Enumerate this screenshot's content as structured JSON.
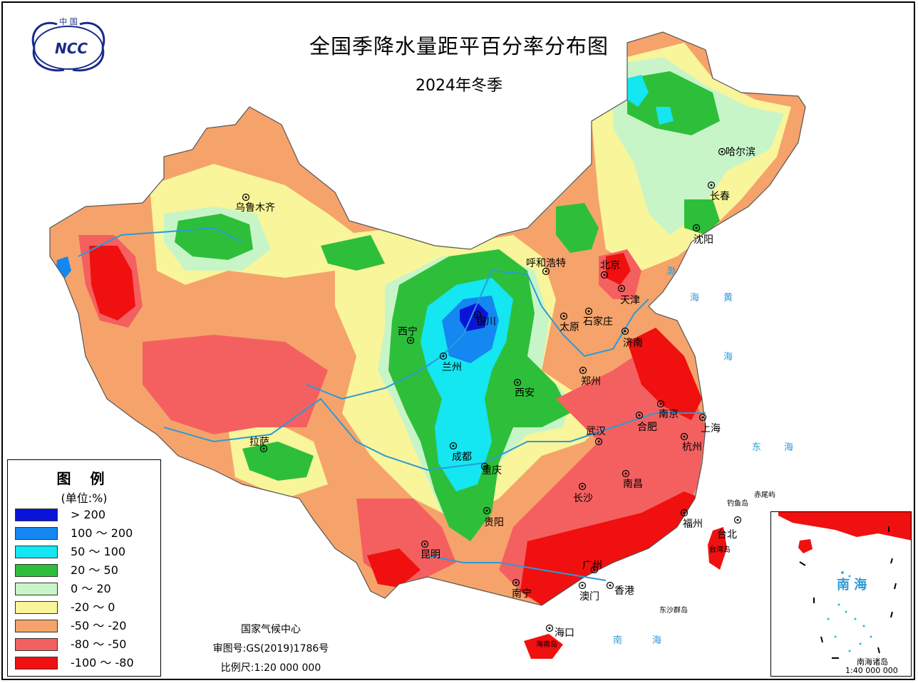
{
  "header": {
    "logo_text": "中国 NCC",
    "title": "全国季降水量距平百分率分布图",
    "subtitle": "2024年冬季"
  },
  "legend": {
    "title": "图 例",
    "unit": "(单位:%)",
    "items": [
      {
        "label": "> 200",
        "color": "#0a14d8"
      },
      {
        "label": "100 ～ 200",
        "color": "#1487f0"
      },
      {
        "label": "50 ～ 100",
        "color": "#14e6f2"
      },
      {
        "label": "20 ～ 50",
        "color": "#2ebf3a"
      },
      {
        "label": "0 ～ 20",
        "color": "#c8f5c8"
      },
      {
        "label": "-20 ～ 0",
        "color": "#f8f59a"
      },
      {
        "label": "-50 ～ -20",
        "color": "#f6a36b"
      },
      {
        "label": "-80 ～ -50",
        "color": "#f46060"
      },
      {
        "label": "-100 ～ -80",
        "color": "#f01010"
      }
    ]
  },
  "credits": {
    "agency": "国家气候中心",
    "approval": "审图号:GS(2019)1786号",
    "scale": "比例尺:1:20 000 000"
  },
  "cities": [
    {
      "name": "乌鲁木齐"
    },
    {
      "name": "哈尔滨"
    },
    {
      "name": "长春"
    },
    {
      "name": "沈阳"
    },
    {
      "name": "呼和浩特"
    },
    {
      "name": "北京"
    },
    {
      "name": "天津"
    },
    {
      "name": "石家庄"
    },
    {
      "name": "太原"
    },
    {
      "name": "银川"
    },
    {
      "name": "西宁"
    },
    {
      "name": "兰州"
    },
    {
      "name": "济南"
    },
    {
      "name": "郑州"
    },
    {
      "name": "西安"
    },
    {
      "name": "南京"
    },
    {
      "name": "合肥"
    },
    {
      "name": "上海"
    },
    {
      "name": "武汉"
    },
    {
      "name": "杭州"
    },
    {
      "name": "拉萨"
    },
    {
      "name": "成都"
    },
    {
      "name": "重庆"
    },
    {
      "name": "南昌"
    },
    {
      "name": "长沙"
    },
    {
      "name": "贵阳"
    },
    {
      "name": "福州"
    },
    {
      "name": "台北"
    },
    {
      "name": "昆明"
    },
    {
      "name": "广州"
    },
    {
      "name": "南宁"
    },
    {
      "name": "澳门"
    },
    {
      "name": "香港"
    },
    {
      "name": "海口"
    }
  ],
  "sea_labels": [
    "渤",
    "海",
    "黄",
    "海",
    "东",
    "海",
    "南",
    "海"
  ],
  "islands": [
    "钓鱼岛",
    "赤尾屿",
    "台湾岛",
    "东沙群岛",
    "海南岛"
  ],
  "inset": {
    "sea": "南 海",
    "islands": "南海诸岛",
    "scale": "1:40 000 000"
  }
}
